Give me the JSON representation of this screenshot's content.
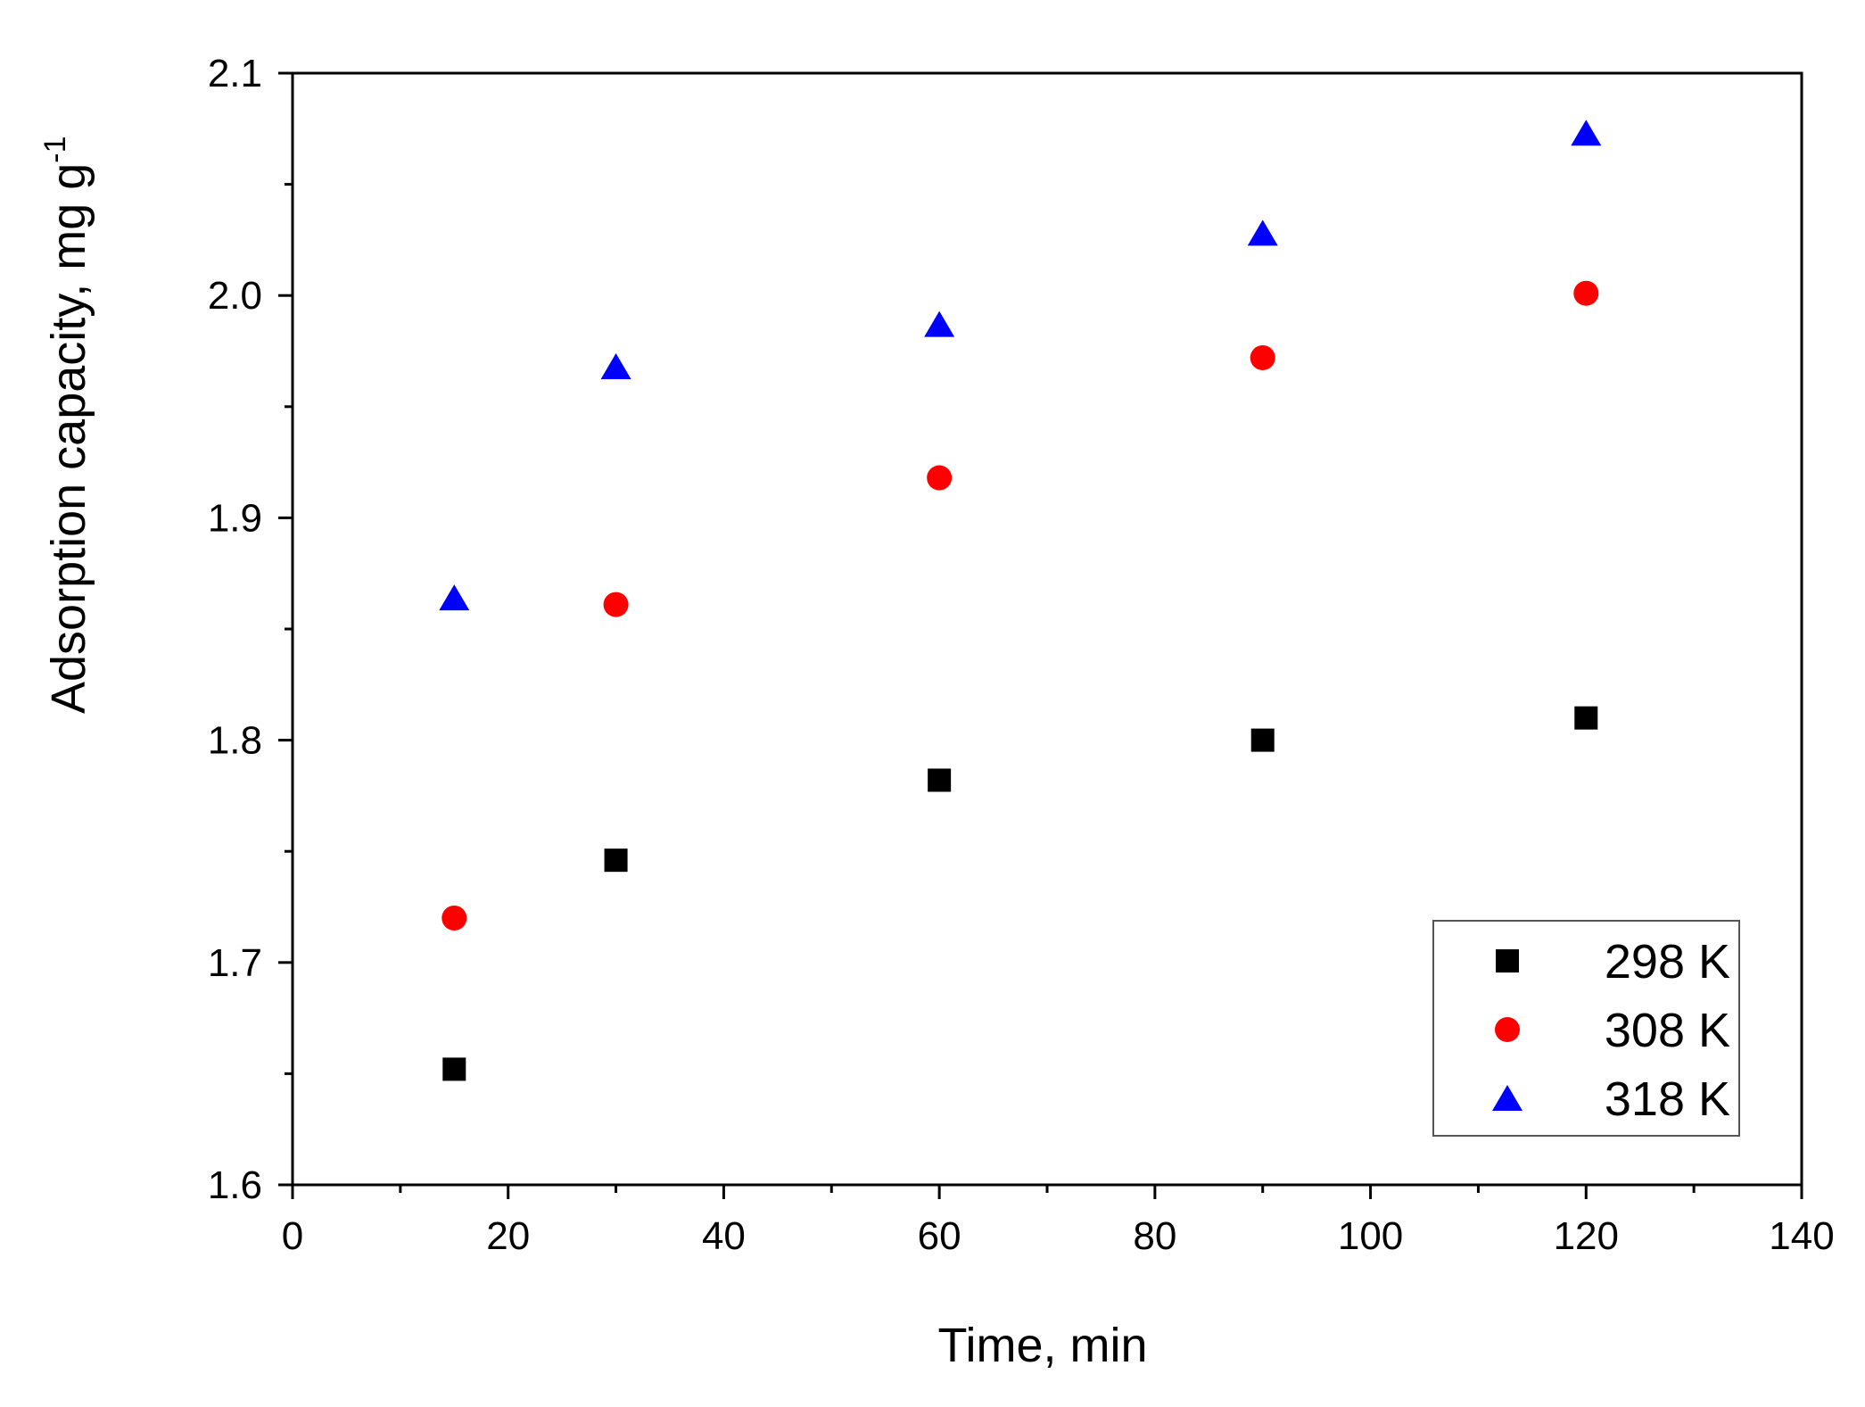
{
  "chart_data": {
    "type": "scatter",
    "title": "",
    "xlabel": "Time, min",
    "ylabel": "Adsorption capacity, mg g",
    "ylabel_superscript": "-1",
    "xlim": [
      0,
      140
    ],
    "ylim": [
      1.6,
      2.1
    ],
    "x_ticks": [
      0,
      20,
      40,
      60,
      80,
      100,
      120,
      140
    ],
    "y_ticks": [
      1.6,
      1.7,
      1.8,
      1.9,
      2.0,
      2.1
    ],
    "x_tick_labels": [
      "0",
      "20",
      "40",
      "60",
      "80",
      "100",
      "120",
      "140"
    ],
    "y_tick_labels": [
      "1.6",
      "1.7",
      "1.8",
      "1.9",
      "2.0",
      "2.1"
    ],
    "x_minor_ticks": [
      10,
      30,
      50,
      70,
      90,
      110,
      130
    ],
    "y_minor_ticks": [
      1.65,
      1.75,
      1.85,
      1.95,
      2.05
    ],
    "grid": false,
    "legend_position": "bottom-right",
    "series": [
      {
        "name": "298 K",
        "marker": "square",
        "color": "#000000",
        "x": [
          15,
          30,
          60,
          90,
          120
        ],
        "y": [
          1.652,
          1.746,
          1.782,
          1.8,
          1.81
        ]
      },
      {
        "name": "308 K",
        "marker": "circle",
        "color": "#ff0000",
        "x": [
          15,
          30,
          60,
          90,
          120
        ],
        "y": [
          1.72,
          1.861,
          1.918,
          1.972,
          2.001
        ]
      },
      {
        "name": "318 K",
        "marker": "triangle",
        "color": "#0000ff",
        "x": [
          15,
          30,
          60,
          90,
          120
        ],
        "y": [
          1.864,
          1.968,
          1.987,
          2.028,
          2.073
        ]
      }
    ]
  }
}
